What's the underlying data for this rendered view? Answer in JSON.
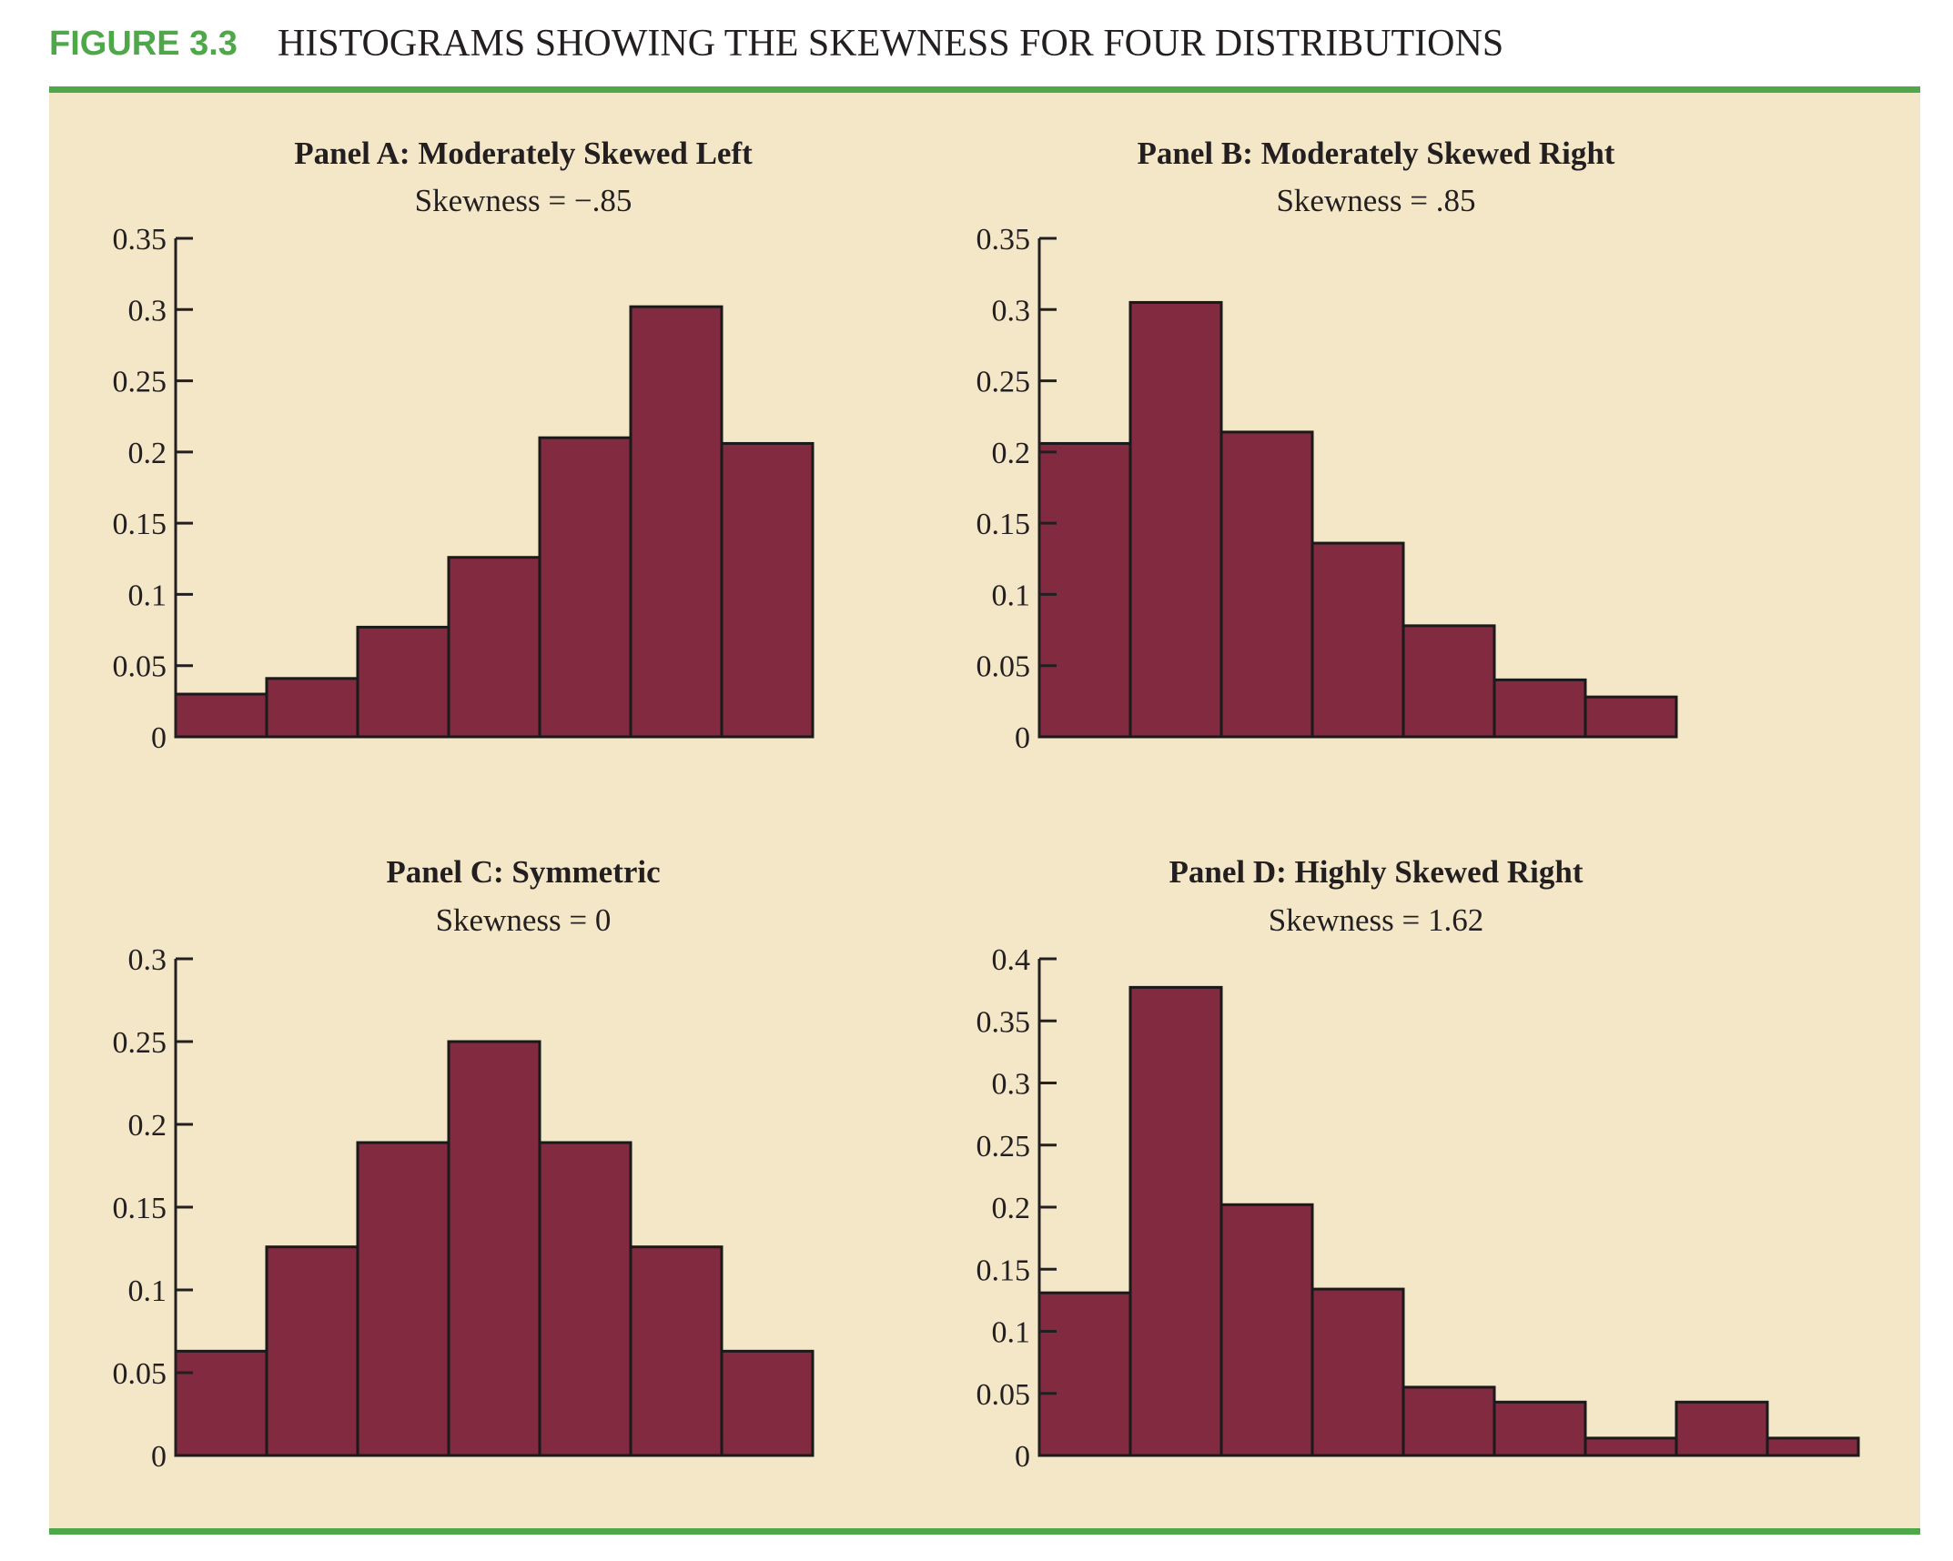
{
  "figure": {
    "label": "FIGURE 3.3",
    "title": "HISTOGRAMS SHOWING THE SKEWNESS FOR FOUR DISTRIBUTIONS"
  },
  "colors": {
    "accent_green": "#4ea84a",
    "panel_background": "#f3e7c8",
    "bar_fill": "#812a40",
    "bar_stroke": "#1a1a1a",
    "text": "#231f20"
  },
  "chart_data": [
    {
      "type": "bar",
      "title": "Panel A: Moderately Skewed Left",
      "subtitle": "Skewness = −.85",
      "values": [
        0.03,
        0.041,
        0.077,
        0.126,
        0.21,
        0.302,
        0.206
      ],
      "ylim": [
        0,
        0.35
      ],
      "yticks": [
        {
          "value": 0,
          "label": "0"
        },
        {
          "value": 0.05,
          "label": "0.05"
        },
        {
          "value": 0.1,
          "label": "0.1"
        },
        {
          "value": 0.15,
          "label": "0.15"
        },
        {
          "value": 0.2,
          "label": "0.2"
        },
        {
          "value": 0.25,
          "label": "0.25"
        },
        {
          "value": 0.3,
          "label": "0.3"
        },
        {
          "value": 0.35,
          "label": "0.35"
        }
      ]
    },
    {
      "type": "bar",
      "title": "Panel B: Moderately Skewed Right",
      "subtitle": "Skewness = .85",
      "values": [
        0.206,
        0.305,
        0.214,
        0.136,
        0.078,
        0.04,
        0.028
      ],
      "ylim": [
        0,
        0.35
      ],
      "yticks": [
        {
          "value": 0,
          "label": "0"
        },
        {
          "value": 0.05,
          "label": "0.05"
        },
        {
          "value": 0.1,
          "label": "0.1"
        },
        {
          "value": 0.15,
          "label": "0.15"
        },
        {
          "value": 0.2,
          "label": "0.2"
        },
        {
          "value": 0.25,
          "label": "0.25"
        },
        {
          "value": 0.3,
          "label": "0.3"
        },
        {
          "value": 0.35,
          "label": "0.35"
        }
      ]
    },
    {
      "type": "bar",
      "title": "Panel C: Symmetric",
      "subtitle": "Skewness = 0",
      "values": [
        0.063,
        0.126,
        0.189,
        0.25,
        0.189,
        0.126,
        0.063
      ],
      "ylim": [
        0,
        0.3
      ],
      "yticks": [
        {
          "value": 0,
          "label": "0"
        },
        {
          "value": 0.05,
          "label": "0.05"
        },
        {
          "value": 0.1,
          "label": "0.1"
        },
        {
          "value": 0.15,
          "label": "0.15"
        },
        {
          "value": 0.2,
          "label": "0.2"
        },
        {
          "value": 0.25,
          "label": "0.25"
        },
        {
          "value": 0.3,
          "label": "0.3"
        }
      ]
    },
    {
      "type": "bar",
      "title": "Panel D: Highly Skewed Right",
      "subtitle": "Skewness = 1.62",
      "values": [
        0.131,
        0.377,
        0.202,
        0.134,
        0.055,
        0.043,
        0.014,
        0.043,
        0.014
      ],
      "ylim": [
        0,
        0.4
      ],
      "yticks": [
        {
          "value": 0,
          "label": "0"
        },
        {
          "value": 0.05,
          "label": "0.05"
        },
        {
          "value": 0.1,
          "label": "0.1"
        },
        {
          "value": 0.15,
          "label": "0.15"
        },
        {
          "value": 0.2,
          "label": "0.2"
        },
        {
          "value": 0.25,
          "label": "0.25"
        },
        {
          "value": 0.3,
          "label": "0.3"
        },
        {
          "value": 0.35,
          "label": "0.35"
        },
        {
          "value": 0.4,
          "label": "0.4"
        }
      ]
    }
  ]
}
